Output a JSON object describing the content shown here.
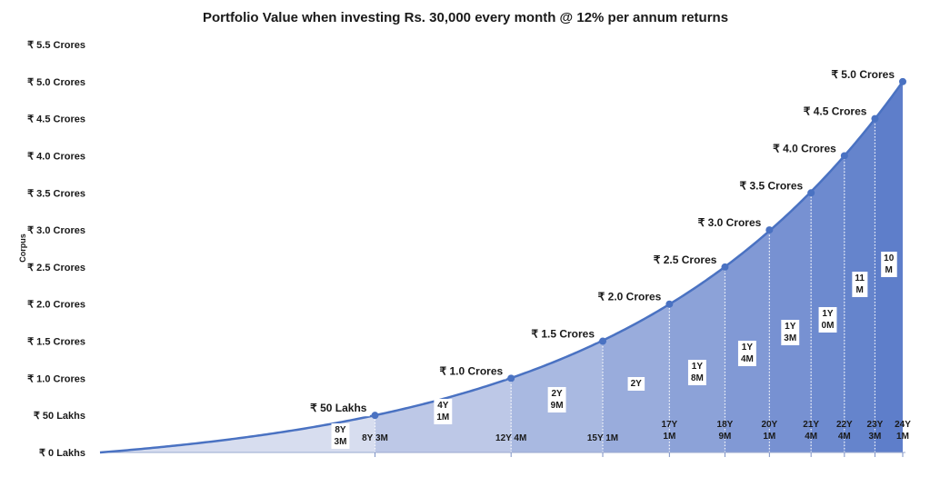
{
  "chart_data": {
    "type": "area",
    "title": "Portfolio Value when investing Rs. 30,000 every month @ 12% per annum returns",
    "ylabel": "Corpus",
    "xlabel": "",
    "ylim": [
      0,
      5.5
    ],
    "y_unit": "Crores",
    "y_ticks": [
      {
        "value": 0,
        "label": "₹ 0 Lakhs"
      },
      {
        "value": 0.5,
        "label": "₹ 50 Lakhs"
      },
      {
        "value": 1.0,
        "label": "₹ 1.0 Crores"
      },
      {
        "value": 1.5,
        "label": "₹ 1.5 Crores"
      },
      {
        "value": 2.0,
        "label": "₹ 2.0 Crores"
      },
      {
        "value": 2.5,
        "label": "₹ 2.5 Crores"
      },
      {
        "value": 3.0,
        "label": "₹ 3.0 Crores"
      },
      {
        "value": 3.5,
        "label": "₹ 3.5 Crores"
      },
      {
        "value": 4.0,
        "label": "₹ 4.0 Crores"
      },
      {
        "value": 4.5,
        "label": "₹ 4.5 Crores"
      },
      {
        "value": 5.0,
        "label": "₹ 5.0 Crores"
      },
      {
        "value": 5.5,
        "label": "₹ 5.5 Crores"
      }
    ],
    "milestones": [
      {
        "months": 99,
        "value": 0.5,
        "label": "₹ 50 Lakhs",
        "x_label": [
          "8Y 3M"
        ],
        "duration": [
          "8Y",
          "3M"
        ]
      },
      {
        "months": 148,
        "value": 1.0,
        "label": "₹ 1.0 Crores",
        "x_label": [
          "12Y 4M"
        ],
        "duration": [
          "4Y",
          "1M"
        ]
      },
      {
        "months": 181,
        "value": 1.5,
        "label": "₹ 1.5 Crores",
        "x_label": [
          "15Y 1M"
        ],
        "duration": [
          "2Y",
          "9M"
        ]
      },
      {
        "months": 205,
        "value": 2.0,
        "label": "₹ 2.0 Crores",
        "x_label": [
          "17Y",
          "1M"
        ],
        "duration": [
          "2Y"
        ]
      },
      {
        "months": 225,
        "value": 2.5,
        "label": "₹ 2.5 Crores",
        "x_label": [
          "18Y",
          "9M"
        ],
        "duration": [
          "1Y",
          "8M"
        ]
      },
      {
        "months": 241,
        "value": 3.0,
        "label": "₹ 3.0 Crores",
        "x_label": [
          "20Y",
          "1M"
        ],
        "duration": [
          "1Y",
          "4M"
        ]
      },
      {
        "months": 256,
        "value": 3.5,
        "label": "₹ 3.5 Crores",
        "x_label": [
          "21Y",
          "4M"
        ],
        "duration": [
          "1Y",
          "3M"
        ]
      },
      {
        "months": 268,
        "value": 4.0,
        "label": "₹ 4.0 Crores",
        "x_label": [
          "22Y",
          "4M"
        ],
        "duration": [
          "1Y",
          "0M"
        ]
      },
      {
        "months": 279,
        "value": 4.5,
        "label": "₹ 4.5 Crores",
        "x_label": [
          "23Y",
          "3M"
        ],
        "duration": [
          "11",
          "M"
        ]
      },
      {
        "months": 289,
        "value": 5.0,
        "label": "₹ 5.0 Crores",
        "x_label": [
          "24Y",
          "1M"
        ],
        "duration": [
          "10",
          "M"
        ]
      }
    ],
    "colors": {
      "line": "#4a72c2",
      "marker": "#4a72c2",
      "fill_light": "#dfe3f1",
      "fill_dark": "#5a7bc9",
      "text": "#1a1a1a",
      "label_bg": "#ffffff"
    }
  }
}
